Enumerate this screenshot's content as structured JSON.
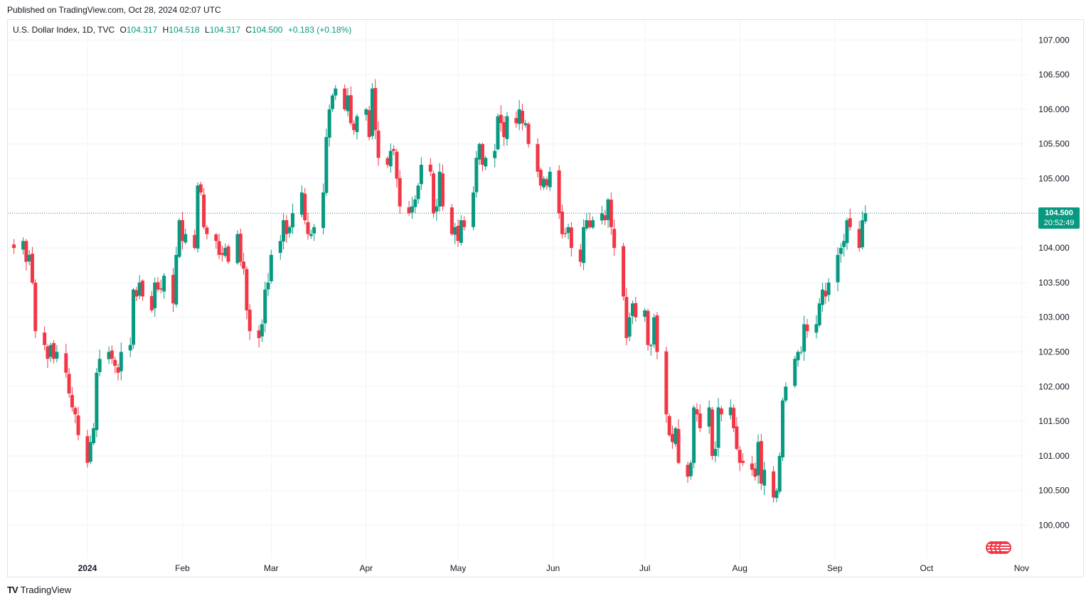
{
  "header": {
    "published": "Published on TradingView.com, Oct 28, 2024 02:07 UTC"
  },
  "legend": {
    "symbol": "U.S. Dollar Index, 1D, TVC",
    "o_label": "O",
    "o_value": "104.317",
    "h_label": "H",
    "h_value": "104.518",
    "l_label": "L",
    "l_value": "104.317",
    "c_label": "C",
    "c_value": "104.500",
    "change": "+0.183 (+0.18%)"
  },
  "price_tag": {
    "value": "104.500",
    "countdown": "20:52:49"
  },
  "footer": {
    "brand": "TradingView",
    "logo": "TV"
  },
  "colors": {
    "up": "#089981",
    "down": "#f23645",
    "grid": "#f0f3fa",
    "axis_text": "#131722"
  },
  "icons": {
    "flags": "us-flag-icon"
  },
  "chart_data": {
    "type": "candlestick",
    "title": "U.S. Dollar Index, 1D, TVC",
    "ylim": [
      99.75,
      107.25
    ],
    "yticks": [
      "107.000",
      "106.500",
      "106.000",
      "105.500",
      "105.000",
      "104.000",
      "103.500",
      "103.000",
      "102.500",
      "102.000",
      "101.500",
      "101.000",
      "100.500",
      "100.000"
    ],
    "last_price": 104.5,
    "x_range": {
      "start": "2023-12-06",
      "end": "2024-11-03"
    },
    "x_ticks": [
      {
        "label": "2024",
        "date": "2024-01-01"
      },
      {
        "label": "Feb",
        "date": "2024-02-01"
      },
      {
        "label": "Mar",
        "date": "2024-03-01"
      },
      {
        "label": "Apr",
        "date": "2024-04-01"
      },
      {
        "label": "May",
        "date": "2024-05-01"
      },
      {
        "label": "Jun",
        "date": "2024-06-01"
      },
      {
        "label": "Jul",
        "date": "2024-07-01"
      },
      {
        "label": "Aug",
        "date": "2024-08-01"
      },
      {
        "label": "Sep",
        "date": "2024-09-01"
      },
      {
        "label": "Oct",
        "date": "2024-10-01"
      },
      {
        "label": "Nov",
        "date": "2024-11-01"
      }
    ],
    "start_date": "2023-12-08",
    "closes": [
      104.0,
      104.1,
      103.8,
      103.9,
      103.5,
      102.8,
      102.6,
      102.4,
      102.6,
      102.4,
      102.5,
      102.2,
      101.9,
      101.7,
      101.6,
      101.3,
      100.9,
      101.2,
      101.4,
      102.2,
      102.4,
      102.5,
      102.4,
      102.3,
      102.2,
      102.5,
      102.6,
      103.4,
      103.3,
      103.5,
      103.3,
      103.1,
      103.5,
      103.4,
      103.4,
      103.6,
      103.2,
      103.9,
      104.4,
      104.1,
      104.2,
      104.0,
      104.9,
      104.8,
      104.3,
      104.2,
      104.1,
      103.9,
      103.9,
      104.0,
      103.8,
      104.2,
      103.8,
      103.7,
      103.1,
      102.8,
      102.7,
      102.9,
      103.4,
      103.5,
      103.9,
      104.1,
      104.4,
      104.2,
      104.3,
      104.5,
      104.8,
      104.4,
      104.2,
      104.2,
      104.3,
      104.8,
      105.6,
      106.0,
      106.2,
      106.3,
      106.0,
      106.2,
      105.8,
      105.7,
      105.9,
      106.0,
      105.6,
      106.3,
      105.7,
      105.3,
      105.2,
      105.4,
      105.4,
      105.0,
      104.6,
      104.5,
      104.6,
      104.7,
      104.9,
      105.2,
      105.1,
      104.5,
      104.6,
      105.1,
      104.6,
      104.2,
      104.3,
      104.1,
      104.4,
      104.3,
      104.8,
      105.3,
      105.5,
      105.2,
      105.3,
      105.4,
      105.9,
      105.8,
      105.6,
      105.9,
      105.8,
      106.0,
      105.8,
      105.8,
      105.5,
      105.1,
      104.9,
      105.0,
      104.9,
      105.1,
      104.5,
      104.2,
      104.2,
      104.3,
      104.0,
      103.8,
      104.3,
      104.4,
      104.3,
      104.4,
      104.5,
      104.4,
      104.7,
      104.3,
      104.0,
      103.3,
      102.7,
      103.0,
      103.2,
      103.0,
      103.1,
      102.6,
      102.6,
      103.0,
      102.5,
      101.6,
      101.3,
      101.2,
      101.4,
      100.9,
      100.7,
      100.9,
      101.7,
      101.6,
      101.4,
      101.7,
      101.0,
      101.1,
      101.7,
      101.6,
      101.7,
      101.4,
      101.1,
      100.9,
      100.9,
      100.8,
      100.7,
      101.2,
      100.6,
      100.8,
      100.4,
      100.5,
      101.0,
      101.8,
      102.0,
      102.4,
      102.5,
      102.5,
      102.9,
      102.8,
      102.9,
      103.2,
      103.4,
      103.3,
      103.5,
      103.9,
      104.0,
      104.1,
      104.4,
      104.3,
      104.0,
      104.4,
      104.5
    ]
  }
}
